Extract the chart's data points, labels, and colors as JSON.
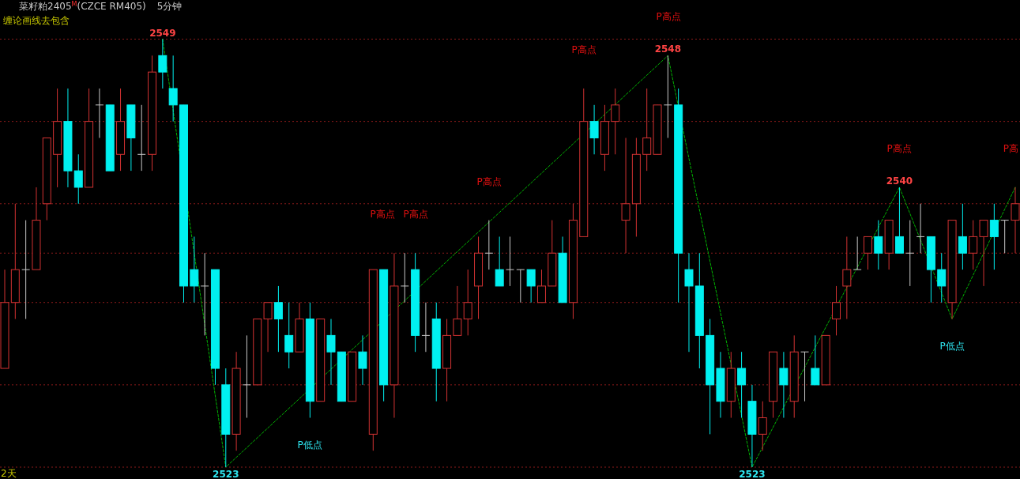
{
  "chart_data": {
    "type": "candlestick",
    "title": "菜籽粕2405$^{M}$(CZCE RM405)",
    "subtitle": "5分钟",
    "annotations": [
      "缠论画线去包含",
      "2天",
      "P高点",
      "P高点",
      "P高点",
      "P高点",
      "P高点",
      "P高点",
      "P高",
      "P低点",
      "P低点"
    ],
    "categories": [
      null,
      null,
      null,
      null,
      null,
      null,
      null,
      null,
      null,
      null,
      null,
      null,
      null,
      null,
      null,
      null,
      null,
      null,
      null,
      null,
      null,
      null,
      null,
      null,
      null,
      null,
      null,
      null,
      null,
      null,
      null,
      null,
      null,
      null,
      null,
      null,
      null,
      null,
      null,
      null,
      null,
      null,
      null,
      null,
      null,
      null,
      null,
      null,
      null,
      null,
      null,
      null,
      null,
      null,
      null,
      null,
      null,
      null,
      null,
      null,
      null,
      null,
      null,
      null,
      null,
      null,
      null,
      null,
      null,
      null,
      null,
      null,
      null,
      null,
      null,
      null,
      null,
      null,
      null,
      null,
      null,
      null,
      null,
      null,
      null,
      null,
      null,
      null,
      null,
      null,
      null,
      null,
      null,
      null,
      null,
      null,
      null
    ],
    "ohlc": [
      [
        2529,
        2535,
        2529,
        2533
      ],
      [
        2533,
        2539,
        2532,
        2535
      ],
      [
        2535,
        2538,
        2532,
        2535
      ],
      [
        2535,
        2540,
        2535,
        2538
      ],
      [
        2539,
        2543,
        2538,
        2543
      ],
      [
        2542,
        2546,
        2540,
        2544
      ],
      [
        2544,
        2546,
        2540,
        2541
      ],
      [
        2541,
        2542,
        2539,
        2540
      ],
      [
        2540,
        2546,
        2540,
        2544
      ],
      [
        2545,
        2546,
        2543,
        2545
      ],
      [
        2545,
        2545,
        2541,
        2541
      ],
      [
        2542,
        2546,
        2541,
        2544
      ],
      [
        2545,
        2545,
        2541,
        2543
      ],
      [
        2542,
        2545,
        2541,
        2542
      ],
      [
        2542,
        2548,
        2541,
        2547
      ],
      [
        2548,
        2549,
        2546,
        2547
      ],
      [
        2546,
        2548,
        2544,
        2545
      ],
      [
        2545,
        2545,
        2533,
        2534
      ],
      [
        2535,
        2537,
        2533,
        2534
      ],
      [
        2534,
        2536,
        2531,
        2534
      ],
      [
        2535,
        2535,
        2528,
        2529
      ],
      [
        2528,
        2529,
        2523,
        2525
      ],
      [
        2525,
        2530,
        2524,
        2529
      ],
      [
        2528,
        2531,
        2526,
        2528
      ],
      [
        2528,
        2532,
        2528,
        2532
      ],
      [
        2532,
        2533,
        2530,
        2533
      ],
      [
        2533,
        2534,
        2530,
        2532
      ],
      [
        2531,
        2533,
        2529,
        2530
      ],
      [
        2530,
        2533,
        2530,
        2532
      ],
      [
        2532,
        2533,
        2526,
        2527
      ],
      [
        2527,
        2532,
        2527,
        2532
      ],
      [
        2531,
        2532,
        2528,
        2530
      ],
      [
        2530,
        2530,
        2527,
        2527
      ],
      [
        2527,
        2530,
        2527,
        2530
      ],
      [
        2530,
        2531,
        2528,
        2529
      ],
      [
        2525,
        2535,
        2524,
        2535
      ],
      [
        2535,
        2535,
        2527,
        2528
      ],
      [
        2528,
        2536,
        2526,
        2534
      ],
      [
        2534,
        2536,
        2533,
        2534
      ],
      [
        2535,
        2536,
        2530,
        2531
      ],
      [
        2531,
        2533,
        2530,
        2531
      ],
      [
        2532,
        2533,
        2527,
        2529
      ],
      [
        2529,
        2532,
        2527,
        2531
      ],
      [
        2531,
        2534,
        2531,
        2532
      ],
      [
        2532,
        2535,
        2531,
        2533
      ],
      [
        2534,
        2537,
        2532,
        2536
      ],
      [
        2536,
        2538,
        2535,
        2536
      ],
      [
        2535,
        2537,
        2534,
        2534
      ],
      [
        2535,
        2537,
        2534,
        2535
      ],
      [
        2535,
        2535,
        2533,
        2535
      ],
      [
        2535,
        2535,
        2533,
        2534
      ],
      [
        2533,
        2535,
        2533,
        2534
      ],
      [
        2534,
        2538,
        2534,
        2536
      ],
      [
        2536,
        2537,
        2533,
        2533
      ],
      [
        2533,
        2539,
        2532,
        2538
      ],
      [
        2537,
        2546,
        2537,
        2544
      ],
      [
        2544,
        2545,
        2542,
        2543
      ],
      [
        2542,
        2545,
        2541,
        2544
      ],
      [
        2544,
        2546,
        2542,
        2545
      ],
      [
        2538,
        2543,
        2536,
        2539
      ],
      [
        2539,
        2543,
        2537,
        2542
      ],
      [
        2542,
        2546,
        2541,
        2543
      ],
      [
        2542,
        2545,
        2542,
        2545
      ],
      [
        2545,
        2548,
        2543,
        2545
      ],
      [
        2545,
        2546,
        2533,
        2536
      ],
      [
        2535,
        2536,
        2530,
        2534
      ],
      [
        2534,
        2536,
        2529,
        2531
      ],
      [
        2531,
        2532,
        2525,
        2528
      ],
      [
        2529,
        2530,
        2526,
        2527
      ],
      [
        2527,
        2530,
        2526,
        2529
      ],
      [
        2529,
        2530,
        2526,
        2528
      ],
      [
        2527,
        2528,
        2523,
        2525
      ],
      [
        2525,
        2527,
        2524,
        2526
      ],
      [
        2527,
        2530,
        2526,
        2530
      ],
      [
        2529,
        2530,
        2526,
        2528
      ],
      [
        2527,
        2531,
        2526,
        2530
      ],
      [
        2530,
        2530,
        2527,
        2530
      ],
      [
        2529,
        2531,
        2528,
        2528
      ],
      [
        2528,
        2531,
        2528,
        2531
      ],
      [
        2532,
        2534,
        2531,
        2533
      ],
      [
        2534,
        2537,
        2532,
        2535
      ],
      [
        2535,
        2537,
        2535,
        2535
      ],
      [
        2536,
        2537,
        2535,
        2537
      ],
      [
        2537,
        2538,
        2535,
        2536
      ],
      [
        2536,
        2538,
        2535,
        2538
      ],
      [
        2537,
        2540,
        2536,
        2536
      ],
      [
        2536,
        2538,
        2534,
        2536
      ],
      [
        2537,
        2539,
        2536,
        2537
      ],
      [
        2537,
        2537,
        2533,
        2535
      ],
      [
        2535,
        2536,
        2533,
        2534
      ],
      [
        2533,
        2538,
        2532,
        2538
      ],
      [
        2537,
        2539,
        2535,
        2536
      ],
      [
        2536,
        2538,
        2535,
        2537
      ],
      [
        2537,
        2538,
        2534,
        2538
      ],
      [
        2538,
        2539,
        2535,
        2537
      ],
      [
        2538,
        2538,
        2536,
        2538
      ],
      [
        2538,
        2540,
        2536,
        2539
      ]
    ],
    "colors": [
      "#d23232",
      "#d23232",
      "#c8c8c8",
      "#d23232",
      "#d23232",
      "#d23232",
      "#00f0f0",
      "#00f0f0",
      "#d23232",
      "#c8c8c8",
      "#00f0f0",
      "#d23232",
      "#00f0f0",
      "#c8c8c8",
      "#d23232",
      "#00f0f0",
      "#00f0f0",
      "#00f0f0",
      "#00f0f0",
      "#c8c8c8",
      "#00f0f0",
      "#00f0f0",
      "#d23232",
      "#c8c8c8",
      "#d23232",
      "#d23232",
      "#00f0f0",
      "#00f0f0",
      "#d23232",
      "#00f0f0",
      "#d23232",
      "#00f0f0",
      "#00f0f0",
      "#d23232",
      "#00f0f0",
      "#d23232",
      "#00f0f0",
      "#d23232",
      "#c8c8c8",
      "#00f0f0",
      "#c8c8c8",
      "#00f0f0",
      "#d23232",
      "#d23232",
      "#d23232",
      "#d23232",
      "#c8c8c8",
      "#00f0f0",
      "#c8c8c8",
      "#c8c8c8",
      "#00f0f0",
      "#d23232",
      "#d23232",
      "#00f0f0",
      "#d23232",
      "#d23232",
      "#00f0f0",
      "#d23232",
      "#d23232",
      "#d23232",
      "#d23232",
      "#d23232",
      "#d23232",
      "#c8c8c8",
      "#00f0f0",
      "#00f0f0",
      "#00f0f0",
      "#00f0f0",
      "#00f0f0",
      "#d23232",
      "#00f0f0",
      "#00f0f0",
      "#d23232",
      "#d23232",
      "#00f0f0",
      "#d23232",
      "#c8c8c8",
      "#00f0f0",
      "#d23232",
      "#d23232",
      "#d23232",
      "#c8c8c8",
      "#d23232",
      "#00f0f0",
      "#d23232",
      "#00f0f0",
      "#c8c8c8",
      "#c8c8c8",
      "#00f0f0",
      "#00f0f0",
      "#d23232",
      "#00f0f0",
      "#d23232",
      "#d23232",
      "#00f0f0",
      "#c8c8c8",
      "#d23232"
    ],
    "series": [
      {
        "type": "line",
        "color": "#00b400",
        "values": [
          null,
          null,
          null,
          null,
          null,
          null,
          null,
          null,
          null,
          null,
          null,
          null,
          null,
          null,
          null,
          2549,
          null,
          null,
          null,
          null,
          null,
          2523,
          null,
          null,
          null,
          null,
          null,
          null,
          null,
          null,
          null,
          null,
          null,
          null,
          null,
          null,
          null,
          null,
          null,
          null,
          null,
          null,
          null,
          null,
          null,
          null,
          null,
          null,
          null,
          null,
          null,
          null,
          null,
          null,
          null,
          null,
          null,
          null,
          null,
          null,
          null,
          null,
          null,
          2548,
          null,
          null,
          null,
          null,
          null,
          null,
          null,
          2523,
          null,
          null,
          null,
          null,
          null,
          null,
          null,
          null,
          null,
          null,
          null,
          null,
          null,
          2540,
          null,
          null,
          null,
          null,
          2532,
          null,
          null,
          null,
          null,
          null,
          2540
        ],
        "value_labels": [
          null,
          null,
          null,
          null,
          null,
          null,
          null,
          null,
          null,
          null,
          null,
          null,
          null,
          null,
          null,
          "2549",
          null,
          null,
          null,
          null,
          null,
          "2523",
          null,
          null,
          null,
          null,
          null,
          null,
          null,
          null,
          null,
          null,
          null,
          null,
          null,
          null,
          null,
          null,
          null,
          null,
          null,
          null,
          null,
          null,
          null,
          null,
          null,
          null,
          null,
          null,
          null,
          null,
          null,
          null,
          null,
          null,
          null,
          null,
          null,
          null,
          null,
          null,
          null,
          "2548",
          null,
          null,
          null,
          null,
          null,
          null,
          null,
          "2523",
          null,
          null,
          null,
          null,
          null,
          null,
          null,
          null,
          null,
          null,
          null,
          null,
          null,
          "2540",
          null,
          null,
          null,
          null,
          null,
          null,
          null,
          null,
          null,
          null,
          null
        ]
      }
    ],
    "line_style": "dashed",
    "yticks": [
      {
        "value": 2549,
        "label": null
      },
      {
        "value": 2544,
        "label": null
      },
      {
        "value": 2539,
        "label": null
      },
      {
        "value": 2536,
        "label": null
      },
      {
        "value": 2533,
        "label": null
      },
      {
        "value": 2528,
        "label": null
      },
      {
        "value": 2523,
        "label": null
      }
    ],
    "grid": "y"
  }
}
